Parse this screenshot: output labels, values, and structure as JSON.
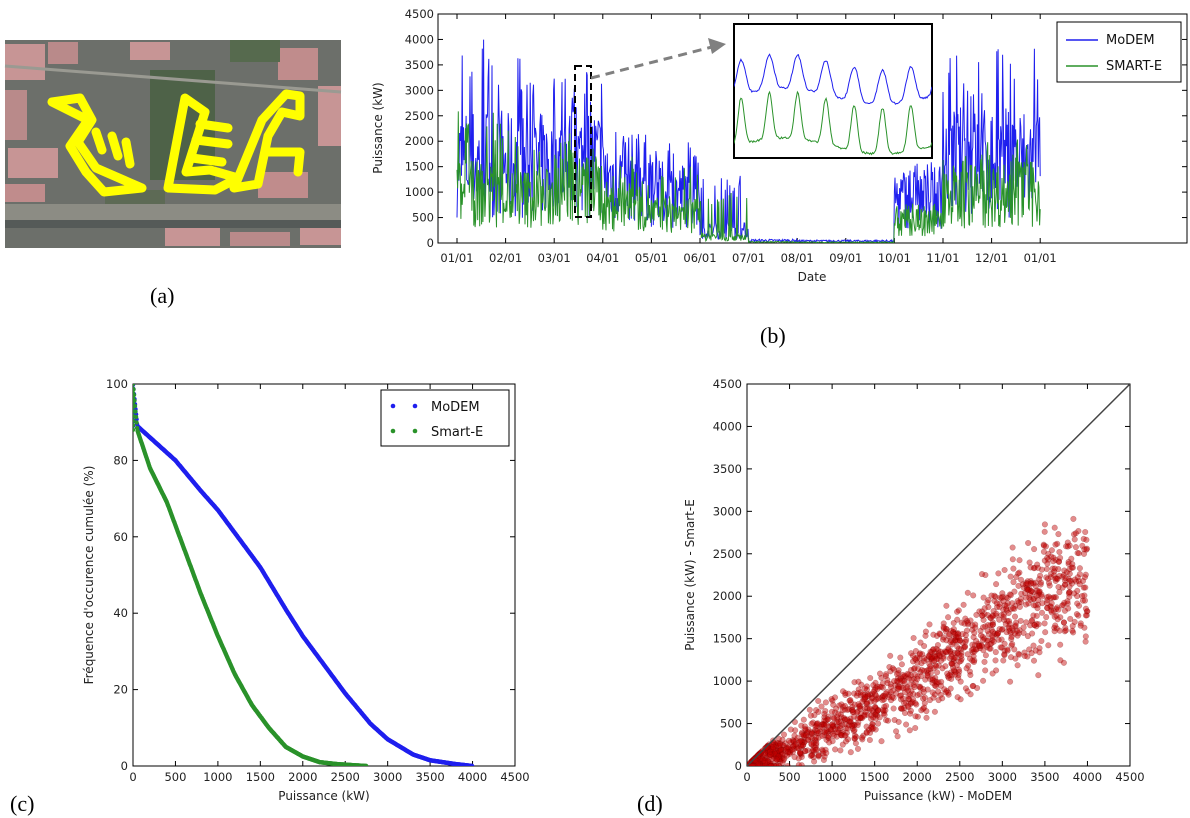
{
  "panels": {
    "a": "(a)",
    "b": "(b)",
    "c": "(c)",
    "d": "(d)"
  },
  "colors": {
    "modem": "#1f1fee",
    "smart": "#2a922a",
    "scatter": "#c00000",
    "diag": "#444444"
  },
  "chart_data": [
    {
      "id": "b",
      "type": "line",
      "title": "",
      "xlabel": "Date",
      "ylabel": "Puissance (kW)",
      "ylim": [
        0,
        4500
      ],
      "yticks": [
        0,
        500,
        1000,
        1500,
        2000,
        2500,
        3000,
        3500,
        4000,
        4500
      ],
      "xticks": [
        "01/01",
        "02/01",
        "03/01",
        "04/01",
        "05/01",
        "06/01",
        "07/01",
        "08/01",
        "09/01",
        "10/01",
        "11/01",
        "12/01",
        "01/01"
      ],
      "legend": "top-right",
      "series": [
        {
          "name": "MoDEM",
          "months": [
            2000,
            1900,
            2000,
            1600,
            1200,
            300,
            50,
            40,
            40,
            1100,
            2000,
            2000
          ],
          "peaks": [
            4000,
            3850,
            3500,
            2400,
            2000,
            1350,
            300,
            60,
            60,
            1600,
            3700,
            4000
          ]
        },
        {
          "name": "SMART-E",
          "months": [
            1200,
            1100,
            1300,
            900,
            700,
            150,
            20,
            15,
            15,
            500,
            1150,
            1200
          ],
          "peaks": [
            2600,
            2300,
            2200,
            1700,
            1500,
            1000,
            100,
            40,
            40,
            800,
            2000,
            2050
          ]
        }
      ],
      "inset": "zoom"
    },
    {
      "id": "c",
      "type": "scatter",
      "title": "",
      "xlabel": "Puissance (kW)",
      "ylabel": "Fréquence d'occurence cumulée (%)",
      "xlim": [
        0,
        4500
      ],
      "ylim": [
        0,
        100
      ],
      "xticks": [
        0,
        500,
        1000,
        1500,
        2000,
        2500,
        3000,
        3500,
        4000,
        4500
      ],
      "yticks": [
        0,
        20,
        40,
        60,
        80,
        100
      ],
      "legend": "top-right",
      "series": [
        {
          "name": "MoDEM",
          "x": [
            0,
            50,
            200,
            500,
            800,
            1000,
            1200,
            1500,
            1800,
            2000,
            2300,
            2500,
            2800,
            3000,
            3300,
            3500,
            3800,
            4000
          ],
          "y": [
            100,
            89,
            86,
            80,
            72,
            67,
            61,
            52,
            41,
            34,
            25,
            19,
            11,
            7,
            3,
            1.5,
            0.5,
            0
          ]
        },
        {
          "name": "Smart-E",
          "x": [
            0,
            50,
            200,
            400,
            600,
            800,
            1000,
            1200,
            1400,
            1600,
            1800,
            2000,
            2200,
            2400,
            2600,
            2750
          ],
          "y": [
            100,
            88,
            78,
            69,
            57,
            45,
            34,
            24,
            16,
            10,
            5,
            2.5,
            1,
            0.5,
            0.2,
            0
          ]
        }
      ]
    },
    {
      "id": "d",
      "type": "scatter",
      "title": "",
      "xlabel": "Puissance (kW) - MoDEM",
      "ylabel": "Puissance (kW) - Smart-E",
      "xlim": [
        0,
        4500
      ],
      "ylim": [
        0,
        4500
      ],
      "xticks": [
        0,
        500,
        1000,
        1500,
        2000,
        2500,
        3000,
        3500,
        4000,
        4500
      ],
      "yticks": [
        0,
        500,
        1000,
        1500,
        2000,
        2500,
        3000,
        3500,
        4000,
        4500
      ],
      "reference_line": "y = x",
      "trend": {
        "x": [
          0,
          1000,
          2000,
          3000,
          4000
        ],
        "y": [
          0,
          450,
          1000,
          1700,
          2300
        ]
      }
    }
  ]
}
